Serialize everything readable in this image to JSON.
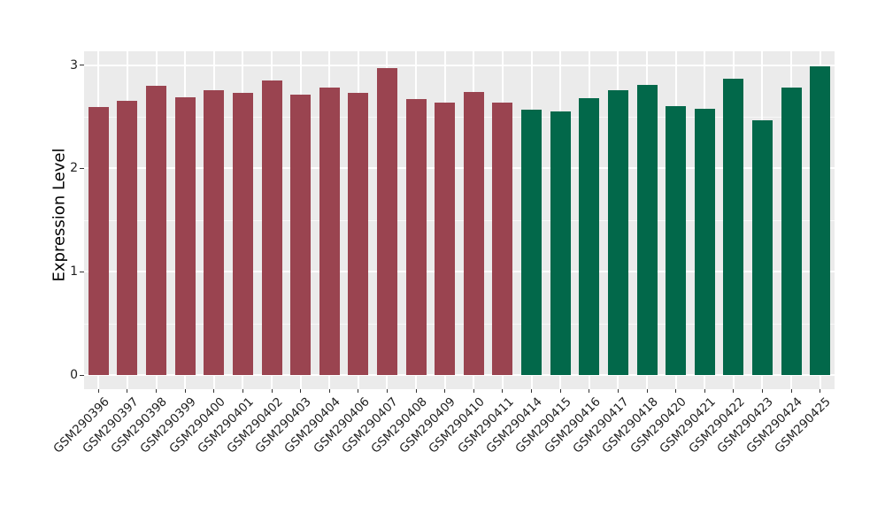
{
  "chart_data": {
    "type": "bar",
    "title": "",
    "xlabel": "",
    "ylabel": "Expression Level",
    "ylim": [
      0,
      3.13
    ],
    "yticks": [
      0,
      1,
      2,
      3
    ],
    "y_minor_ticks": [
      0.5,
      1.5,
      2.5
    ],
    "grid": true,
    "legend_position": "none",
    "panel_background": "#EBEBEB",
    "gridline_color": "#FFFFFF",
    "group_colors": {
      "group1": "#9A4450",
      "group2": "#02684A"
    },
    "bars": [
      {
        "label": "GSM290396",
        "value": 2.59,
        "group": "group1"
      },
      {
        "label": "GSM290397",
        "value": 2.65,
        "group": "group1"
      },
      {
        "label": "GSM290398",
        "value": 2.8,
        "group": "group1"
      },
      {
        "label": "GSM290399",
        "value": 2.69,
        "group": "group1"
      },
      {
        "label": "GSM290400",
        "value": 2.76,
        "group": "group1"
      },
      {
        "label": "GSM290401",
        "value": 2.73,
        "group": "group1"
      },
      {
        "label": "GSM290402",
        "value": 2.85,
        "group": "group1"
      },
      {
        "label": "GSM290403",
        "value": 2.71,
        "group": "group1"
      },
      {
        "label": "GSM290404",
        "value": 2.78,
        "group": "group1"
      },
      {
        "label": "GSM290406",
        "value": 2.73,
        "group": "group1"
      },
      {
        "label": "GSM290407",
        "value": 2.97,
        "group": "group1"
      },
      {
        "label": "GSM290408",
        "value": 2.67,
        "group": "group1"
      },
      {
        "label": "GSM290409",
        "value": 2.64,
        "group": "group1"
      },
      {
        "label": "GSM290410",
        "value": 2.74,
        "group": "group1"
      },
      {
        "label": "GSM290411",
        "value": 2.64,
        "group": "group1"
      },
      {
        "label": "GSM290414",
        "value": 2.57,
        "group": "group2"
      },
      {
        "label": "GSM290415",
        "value": 2.55,
        "group": "group2"
      },
      {
        "label": "GSM290416",
        "value": 2.68,
        "group": "group2"
      },
      {
        "label": "GSM290417",
        "value": 2.76,
        "group": "group2"
      },
      {
        "label": "GSM290418",
        "value": 2.81,
        "group": "group2"
      },
      {
        "label": "GSM290420",
        "value": 2.6,
        "group": "group2"
      },
      {
        "label": "GSM290421",
        "value": 2.58,
        "group": "group2"
      },
      {
        "label": "GSM290422",
        "value": 2.87,
        "group": "group2"
      },
      {
        "label": "GSM290423",
        "value": 2.47,
        "group": "group2"
      },
      {
        "label": "GSM290424",
        "value": 2.78,
        "group": "group2"
      },
      {
        "label": "GSM290425",
        "value": 2.99,
        "group": "group2"
      }
    ]
  }
}
